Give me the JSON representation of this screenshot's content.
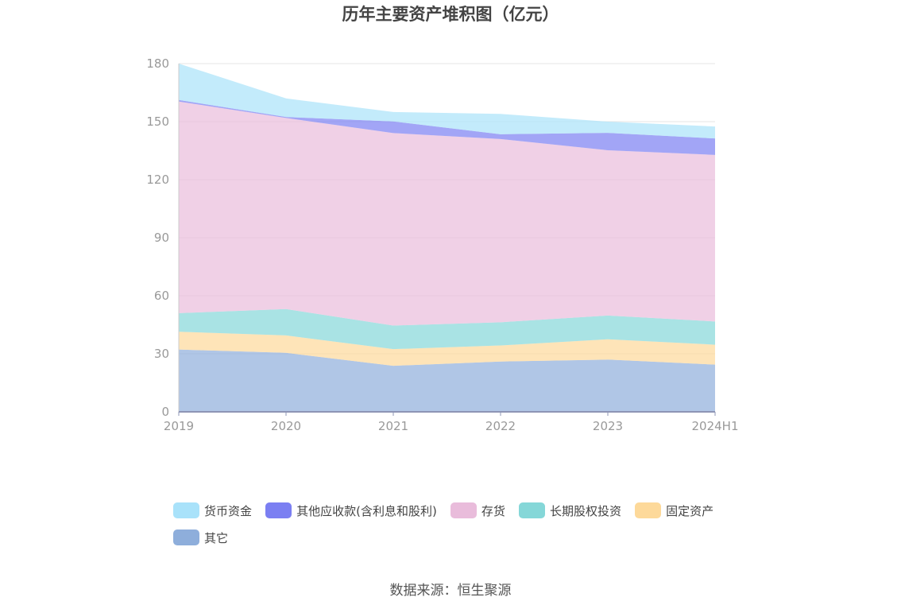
{
  "chart_data": {
    "type": "area",
    "stacked": true,
    "title": "历年主要资产堆积图（亿元）",
    "categories": [
      "2019",
      "2020",
      "2021",
      "2022",
      "2023",
      "2024H1"
    ],
    "ylim": [
      0,
      180
    ],
    "yticks": [
      0,
      30,
      60,
      90,
      120,
      150,
      180
    ],
    "grid": true,
    "legend_position": "bottom",
    "series": [
      {
        "name": "其它",
        "color": "#8eaedb",
        "values": [
          32.2,
          30.5,
          23.8,
          26.0,
          27.0,
          24.4
        ]
      },
      {
        "name": "固定资产",
        "color": "#fdd99a",
        "values": [
          9.2,
          9.0,
          8.6,
          8.3,
          10.5,
          10.3
        ]
      },
      {
        "name": "长期股权投资",
        "color": "#85d7d8",
        "values": [
          9.6,
          13.6,
          12.2,
          12.0,
          12.3,
          12.0
        ]
      },
      {
        "name": "存货",
        "color": "#e9bcdb",
        "values": [
          109.4,
          98.8,
          99.5,
          94.7,
          85.4,
          86.1
        ]
      },
      {
        "name": "其他应收款(含利息和股利)",
        "color": "#7b7ff2",
        "values": [
          0.8,
          0.5,
          6.0,
          2.5,
          9.0,
          8.5
        ]
      },
      {
        "name": "货币资金",
        "color": "#a9e2fa",
        "values": [
          18.8,
          9.6,
          4.9,
          10.5,
          5.8,
          6.2
        ]
      }
    ]
  },
  "legend": {
    "items": [
      {
        "label": "货币资金",
        "color": "#a9e2fa"
      },
      {
        "label": "其他应收款(含利息和股利)",
        "color": "#7b7ff2"
      },
      {
        "label": "存货",
        "color": "#e9bcdb"
      },
      {
        "label": "长期股权投资",
        "color": "#85d7d8"
      },
      {
        "label": "固定资产",
        "color": "#fdd99a"
      },
      {
        "label": "其它",
        "color": "#8eaedb"
      }
    ]
  },
  "source": "数据来源：恒生聚源"
}
